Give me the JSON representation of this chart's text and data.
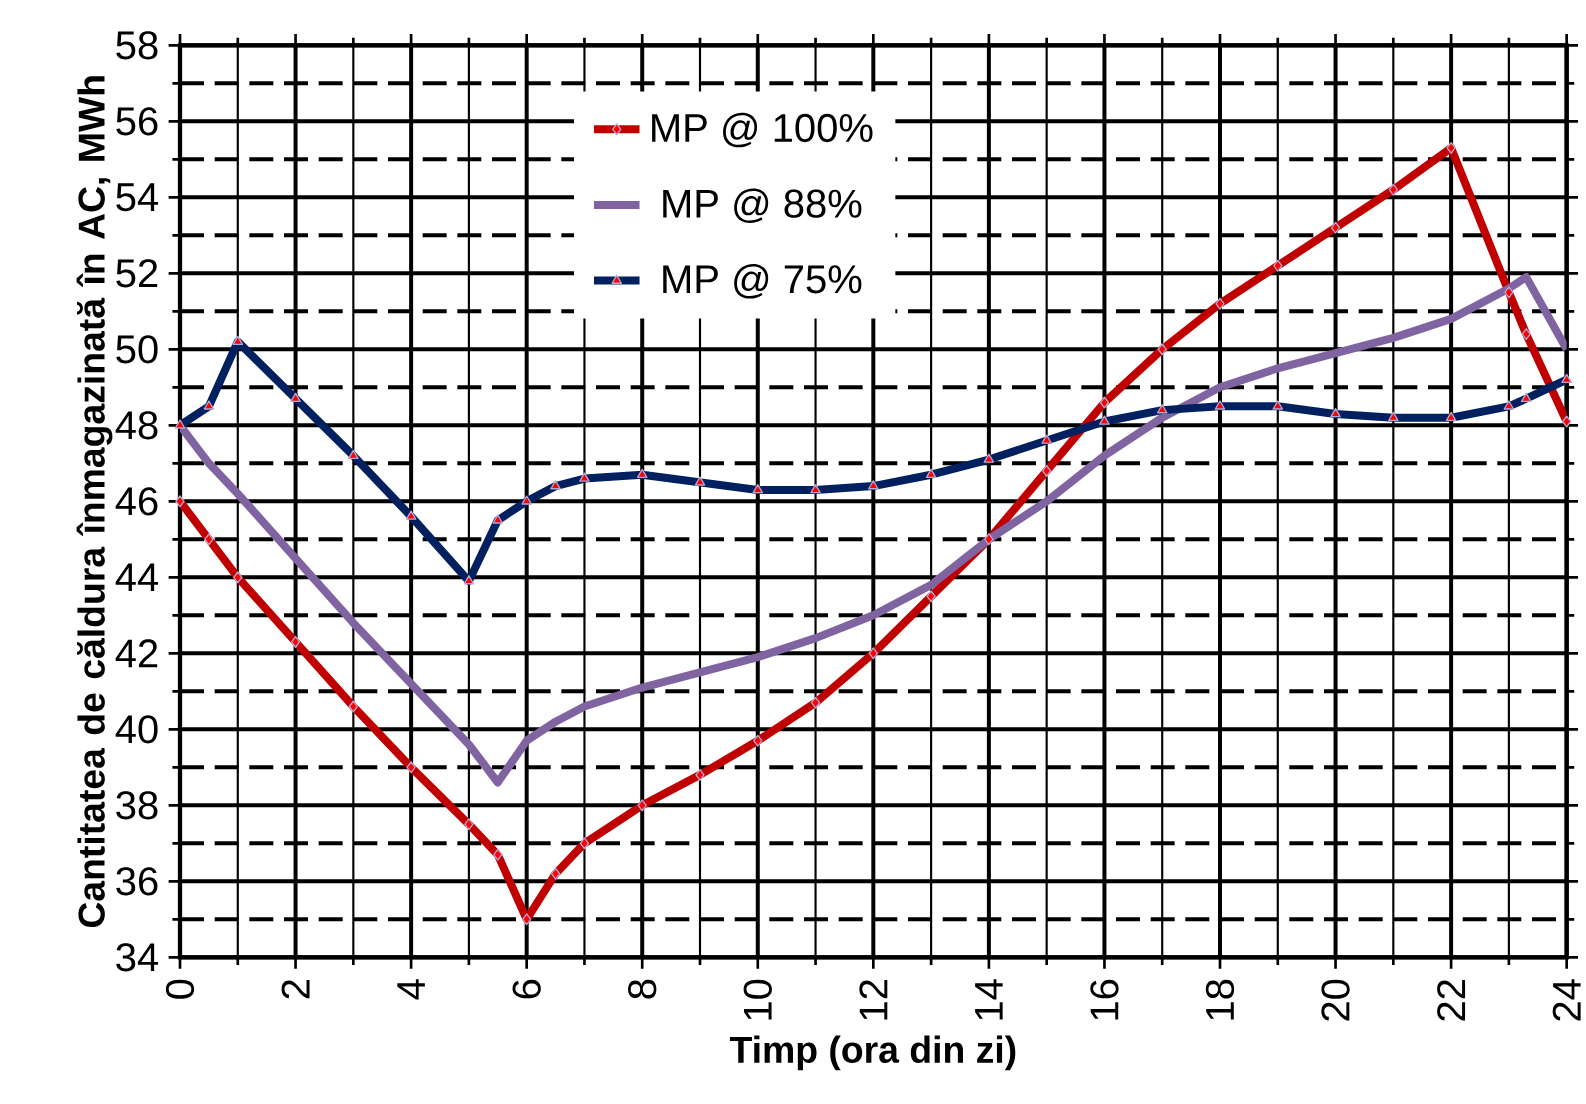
{
  "chart_data": {
    "type": "line",
    "xlabel": "Timp (ora din zi)",
    "ylabel": "Cantitatea de căldura înmagazinată în AC, MWh",
    "x": [
      0,
      0.5,
      1,
      2,
      3,
      4,
      5,
      5.5,
      6,
      6.5,
      7,
      8,
      9,
      10,
      11,
      12,
      13,
      14,
      15,
      16,
      17,
      18,
      19,
      20,
      21,
      22,
      23,
      23.3,
      24
    ],
    "series": [
      {
        "name": "MP @ 100%",
        "color": "#c00000",
        "marker": "diamond",
        "values": [
          46,
          45,
          44,
          42.3,
          40.6,
          39,
          37.5,
          36.7,
          35,
          36.2,
          37,
          38,
          38.8,
          39.7,
          40.7,
          42,
          43.5,
          45,
          46.8,
          48.6,
          50,
          51.2,
          52.2,
          53.2,
          54.2,
          55.3,
          51.5,
          50.4,
          48.1
        ]
      },
      {
        "name": "MP @ 88%",
        "color": "#8064a2",
        "marker": "none",
        "values": [
          48,
          47,
          46.2,
          44.5,
          42.8,
          41.2,
          39.6,
          38.6,
          39.7,
          40.2,
          40.6,
          41.1,
          41.5,
          41.9,
          42.4,
          43,
          43.8,
          45,
          46,
          47.2,
          48.2,
          49,
          49.5,
          49.9,
          50.3,
          50.8,
          51.6,
          51.9,
          50
        ]
      },
      {
        "name": "MP @ 75%",
        "color": "#002060",
        "marker": "triangle",
        "values": [
          48,
          48.5,
          50.2,
          48.7,
          47.2,
          45.6,
          43.9,
          45.5,
          46,
          46.4,
          46.6,
          46.7,
          46.5,
          46.3,
          46.3,
          46.4,
          46.7,
          47.1,
          47.6,
          48.1,
          48.4,
          48.5,
          48.5,
          48.3,
          48.2,
          48.2,
          48.5,
          48.7,
          49.2
        ]
      }
    ],
    "xlim": [
      0,
      24
    ],
    "ylim": [
      34,
      58
    ],
    "xticks": [
      0,
      2,
      4,
      6,
      8,
      10,
      12,
      14,
      16,
      18,
      20,
      22,
      24
    ],
    "yticks": [
      34,
      36,
      38,
      40,
      42,
      44,
      46,
      48,
      50,
      52,
      54,
      56,
      58
    ],
    "grid": true,
    "legend": "top"
  }
}
